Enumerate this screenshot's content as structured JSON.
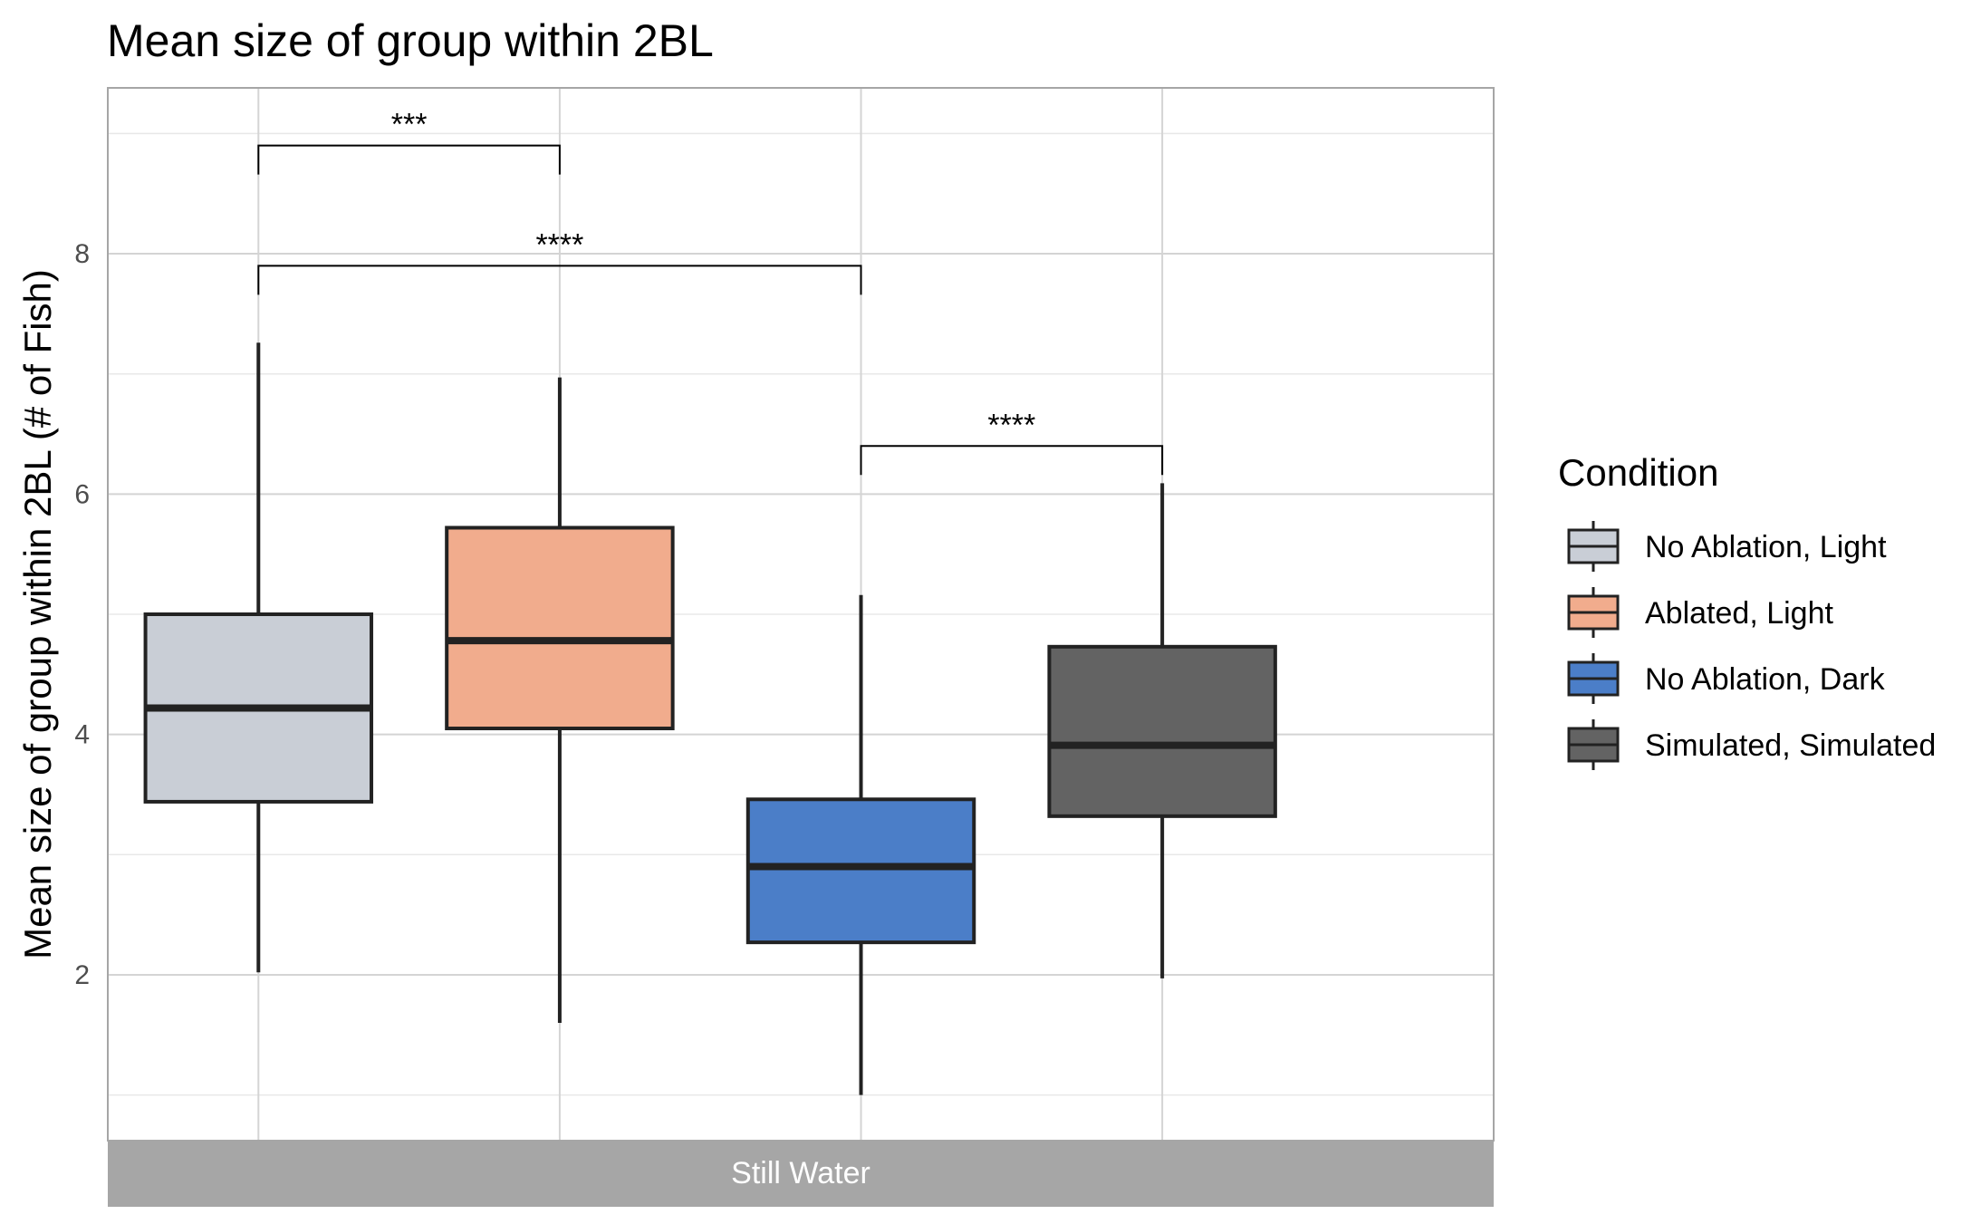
{
  "chart_data": {
    "type": "box",
    "title": "Mean size of group within 2BL",
    "ylabel": "Mean size of group within 2BL (# of Fish)",
    "xlabel": "",
    "ylim": [
      0.62,
      9.38
    ],
    "yticks": [
      2,
      4,
      6,
      8
    ],
    "ytick_labels": [
      "2",
      "4",
      "6",
      "8"
    ],
    "grid": true,
    "facet_label": "Still Water",
    "legend": {
      "title": "Condition",
      "position": "right"
    },
    "series": [
      {
        "name": "No Ablation, Light",
        "color": "#c9ced6",
        "whisker_low": 2.02,
        "q1": 3.44,
        "median": 4.22,
        "q3": 5.0,
        "whisker_high": 7.26
      },
      {
        "name": "Ablated, Light",
        "color": "#f1ac8d",
        "whisker_low": 1.6,
        "q1": 4.05,
        "median": 4.78,
        "q3": 5.72,
        "whisker_high": 6.97
      },
      {
        "name": "No Ablation, Dark",
        "color": "#4b7ec8",
        "whisker_low": 1.0,
        "q1": 2.27,
        "median": 2.9,
        "q3": 3.46,
        "whisker_high": 5.16
      },
      {
        "name": "Simulated, Simulated",
        "color": "#636363",
        "whisker_low": 1.97,
        "q1": 3.32,
        "median": 3.91,
        "q3": 4.73,
        "whisker_high": 6.09
      }
    ],
    "significance": [
      {
        "from": 0,
        "to": 1,
        "y": 8.9,
        "label": "***"
      },
      {
        "from": 0,
        "to": 2,
        "y": 7.9,
        "label": "****"
      },
      {
        "from": 2,
        "to": 3,
        "y": 6.4,
        "label": "****"
      }
    ]
  }
}
